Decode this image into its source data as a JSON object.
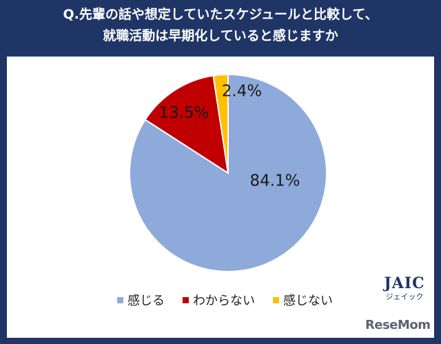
{
  "title": {
    "line1": "Q.先輩の話や想定していたスケジュールと比較して、",
    "line2": "就職活動は早期化していると感じますか"
  },
  "chart_data": {
    "type": "pie",
    "categories": [
      "感じる",
      "わからない",
      "感じない"
    ],
    "values": [
      84.1,
      13.5,
      2.4
    ],
    "labels": [
      "84.1%",
      "13.5%",
      "2.4%"
    ],
    "colors": [
      "#8eaadb",
      "#c00000",
      "#ffc000"
    ],
    "legend": "bottom"
  },
  "logo": {
    "main": "JAIC",
    "sub": "ジェイック"
  },
  "watermark": "ReseMom"
}
